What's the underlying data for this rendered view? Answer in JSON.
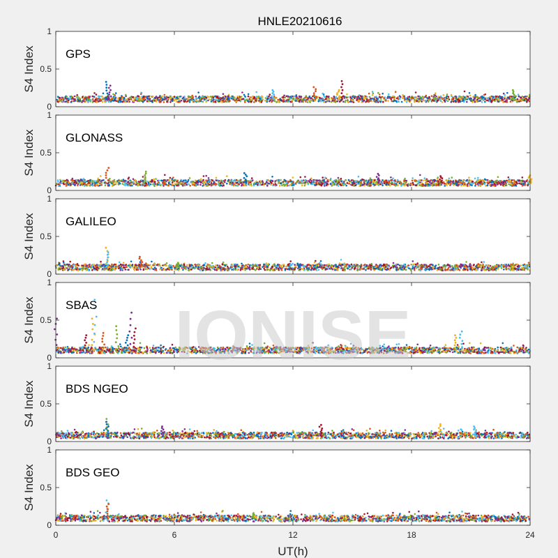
{
  "figure": {
    "title": "HNLE20210616",
    "watermark": "IONISE",
    "xlabel": "UT(h)",
    "ylabel": "S4 Index"
  },
  "chart_data": {
    "type": "scatter",
    "title": "HNLE20210616",
    "xlabel": "UT(h)",
    "ylabel": "S4 Index",
    "xlim": [
      0,
      24
    ],
    "ylim": [
      0,
      1
    ],
    "xticks": [
      "0",
      "6",
      "12",
      "18",
      "24"
    ],
    "yticks": [
      "0",
      "0.5",
      "1"
    ],
    "grid": false,
    "series_colors": [
      "#0072BD",
      "#D95319",
      "#EDB120",
      "#7E2F8E",
      "#77AC30",
      "#4DBEEE",
      "#A2142F"
    ],
    "panels": [
      {
        "label": "GPS",
        "baseline": 0.1,
        "spikes": [
          [
            2.6,
            0.33
          ],
          [
            2.7,
            0.28
          ],
          [
            14.5,
            0.34
          ],
          [
            14.3,
            0.22
          ],
          [
            11.0,
            0.22
          ],
          [
            13.1,
            0.26
          ],
          [
            23.2,
            0.22
          ]
        ]
      },
      {
        "label": "GLONASS",
        "baseline": 0.1,
        "spikes": [
          [
            2.6,
            0.3
          ],
          [
            4.5,
            0.25
          ],
          [
            9.6,
            0.23
          ],
          [
            16.3,
            0.22
          ],
          [
            19.5,
            0.19
          ],
          [
            24.0,
            0.2
          ]
        ]
      },
      {
        "label": "GALILEO",
        "baseline": 0.09,
        "spikes": [
          [
            2.6,
            0.35
          ],
          [
            2.6,
            0.29
          ],
          [
            4.3,
            0.23
          ],
          [
            6.2,
            0.15
          ],
          [
            12.3,
            0.14
          ],
          [
            20.5,
            0.13
          ]
        ]
      },
      {
        "label": "SBAS",
        "baseline": 0.1,
        "spikes": [
          [
            0.0,
            0.52
          ],
          [
            1.5,
            0.3
          ],
          [
            1.9,
            0.52
          ],
          [
            2.0,
            0.77
          ],
          [
            2.4,
            0.33
          ],
          [
            3.1,
            0.42
          ],
          [
            3.6,
            0.3
          ],
          [
            3.8,
            0.6
          ],
          [
            4.0,
            0.39
          ],
          [
            20.2,
            0.3
          ],
          [
            20.5,
            0.35
          ]
        ]
      },
      {
        "label": "BDS NGEO",
        "baseline": 0.08,
        "spikes": [
          [
            2.6,
            0.3
          ],
          [
            2.6,
            0.26
          ],
          [
            5.4,
            0.2
          ],
          [
            13.4,
            0.22
          ],
          [
            19.4,
            0.23
          ],
          [
            21.2,
            0.2
          ]
        ]
      },
      {
        "label": "BDS GEO",
        "baseline": 0.09,
        "spikes": [
          [
            2.6,
            0.33
          ],
          [
            2.6,
            0.28
          ],
          [
            10.0,
            0.16
          ]
        ]
      }
    ]
  }
}
